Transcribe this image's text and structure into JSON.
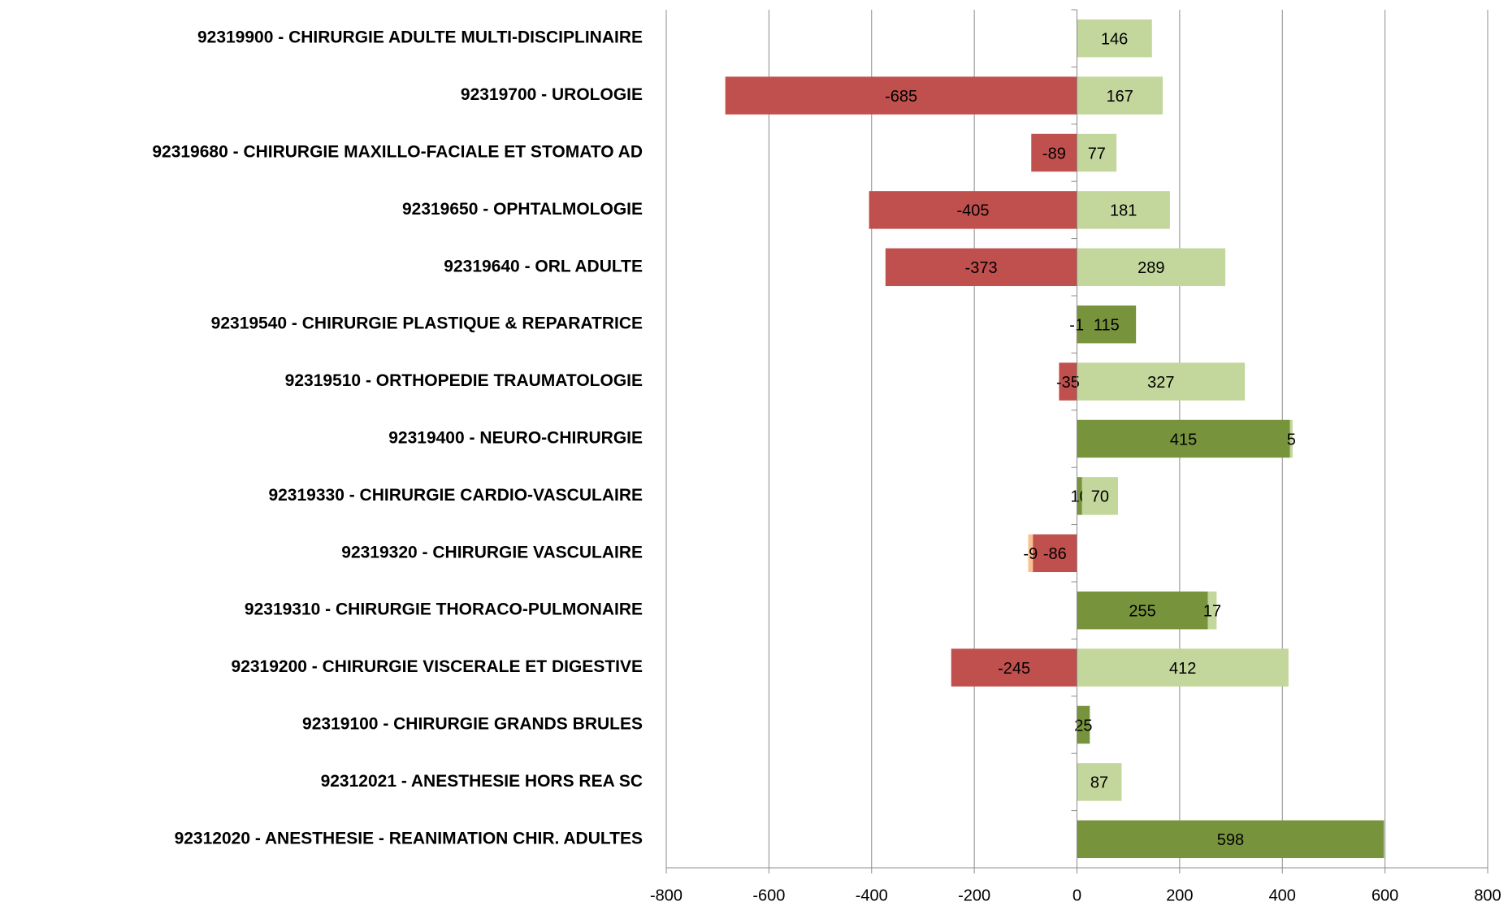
{
  "chart_data": {
    "type": "bar",
    "orientation": "horizontal",
    "stacked": true,
    "categories": [
      "92319900 - CHIRURGIE ADULTE MULTI-DISCIPLINAIRE",
      "92319700 - UROLOGIE",
      "92319680 - CHIRURGIE MAXILLO-FACIALE ET STOMATO AD",
      "92319650 - OPHTALMOLOGIE",
      "92319640 - ORL ADULTE",
      "92319540 - CHIRURGIE PLASTIQUE & REPARATRICE",
      "92319510 - ORTHOPEDIE TRAUMATOLOGIE",
      "92319400 - NEURO-CHIRURGIE",
      "92319330 - CHIRURGIE CARDIO-VASCULAIRE",
      "92319320 - CHIRURGIE VASCULAIRE",
      "92319310 - CHIRURGIE THORACO-PULMONAIRE",
      "92319200 - CHIRURGIE VISCERALE ET DIGESTIVE",
      "92319100 - CHIRURGIE GRANDS BRULES",
      "92312021 - ANESTHESIE HORS REA SC",
      "92312020 - ANESTHESIE - REANIMATION CHIR. ADULTES"
    ],
    "series": [
      {
        "color": "#77933c",
        "values": [
          null,
          null,
          null,
          null,
          null,
          115,
          null,
          415,
          10,
          null,
          255,
          null,
          25,
          null,
          598
        ]
      },
      {
        "color": "#c3d69b",
        "values": [
          146,
          167,
          77,
          181,
          289,
          null,
          327,
          5,
          70,
          null,
          17,
          412,
          null,
          87,
          null
        ]
      },
      {
        "color": "#c0504d",
        "values": [
          null,
          -685,
          -89,
          -405,
          -373,
          -1,
          -35,
          null,
          null,
          -86,
          null,
          -245,
          null,
          null,
          null
        ]
      },
      {
        "color": "#fac08f",
        "values": [
          null,
          null,
          null,
          null,
          null,
          null,
          null,
          null,
          null,
          -9,
          null,
          null,
          null,
          null,
          null
        ]
      }
    ],
    "xlim": [
      -800,
      800
    ],
    "xticks": [
      -800,
      -600,
      -400,
      -200,
      0,
      200,
      400,
      600,
      800
    ],
    "grid": true
  }
}
